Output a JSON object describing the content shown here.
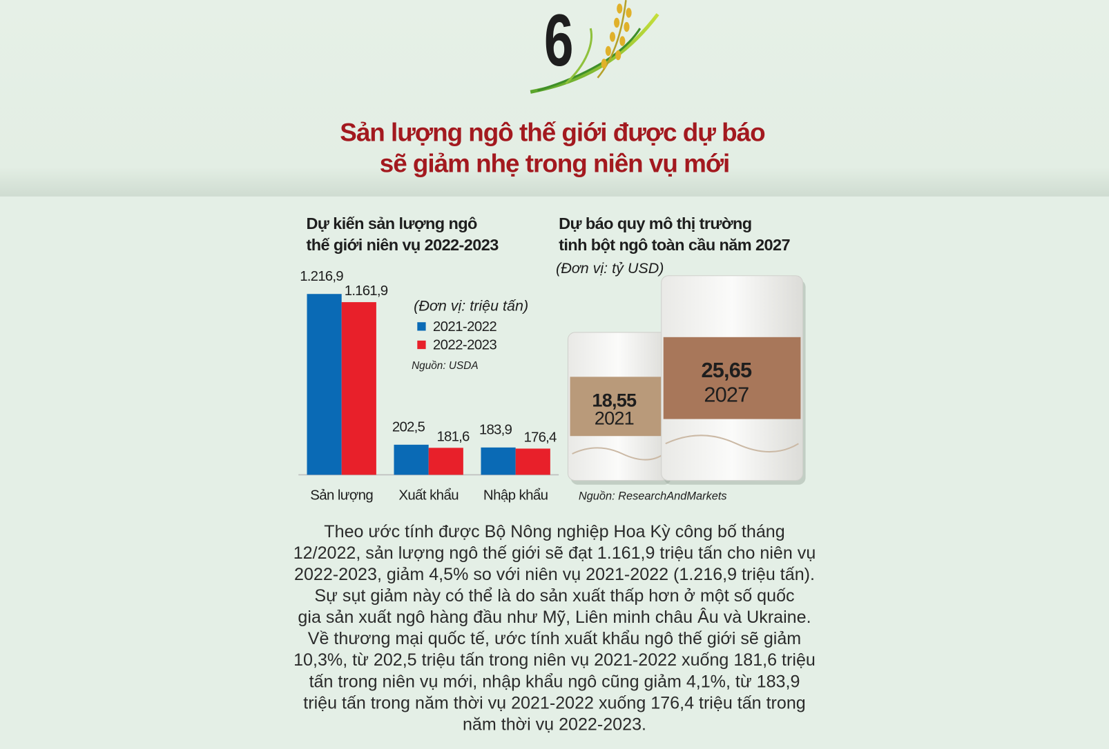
{
  "header": {
    "number": "6",
    "title": [
      "Sản lượng ngô thế giới được dự báo",
      "sẽ giảm nhẹ trong niên vụ mới"
    ]
  },
  "chart_data": [
    {
      "type": "bar",
      "title": [
        "Dự kiến sản lượng ngô",
        "thế giới niên vụ 2022-2023"
      ],
      "unit": "(Đơn vị: triệu tấn)",
      "source": "Nguồn: USDA",
      "categories": [
        "Sản lượng",
        "Xuất khẩu",
        "Nhập khẩu"
      ],
      "series": [
        {
          "name": "2021-2022",
          "color": "#0a6ab5",
          "values": [
            1216.9,
            202.5,
            183.9
          ],
          "value_labels": [
            "1.216,9",
            "202,5",
            "183,9"
          ]
        },
        {
          "name": "2022-2023",
          "color": "#e8202a",
          "values": [
            1161.9,
            181.6,
            176.4
          ],
          "value_labels": [
            "1.161,9",
            "181,6",
            "176,4"
          ]
        }
      ]
    },
    {
      "type": "pictorial",
      "title": [
        "Dự báo quy mô thị trường",
        "tinh bột ngô toàn cầu năm 2027"
      ],
      "unit": "(Đơn vị: tỷ USD)",
      "source": "Nguồn: ResearchAndMarkets",
      "categories": [
        "2021",
        "2027"
      ],
      "values": [
        18.55,
        25.65
      ],
      "value_labels": [
        "18,55",
        "25,65"
      ],
      "colors": [
        "#b99a7a",
        "#a8775a"
      ]
    }
  ],
  "body": {
    "lines": [
      "Theo ước tính được Bộ Nông nghiệp Hoa Kỳ  công bố tháng",
      "12/2022, sản lượng ngô thế giới sẽ đạt 1.161,9 triệu tấn cho niên vụ",
      "2022-2023, giảm 4,5% so với niên vụ 2021-2022 (1.216,9 triệu tấn).",
      "Sự sụt giảm này có thể là do sản xuất thấp hơn ở một số quốc",
      "gia sản xuất ngô hàng đầu như Mỹ, Liên minh châu Âu và Ukraine.",
      "Về thương mại quốc tế, ước tính xuất khẩu ngô thế giới sẽ giảm",
      "10,3%, từ 202,5 triệu tấn trong niên vụ 2021-2022 xuống 181,6 triệu",
      "tấn trong niên vụ mới, nhập khẩu ngô cũng giảm 4,1%, từ 183,9",
      "triệu tấn trong năm thời vụ 2021-2022 xuống 176,4 triệu tấn trong",
      "năm thời vụ 2022-2023."
    ]
  }
}
